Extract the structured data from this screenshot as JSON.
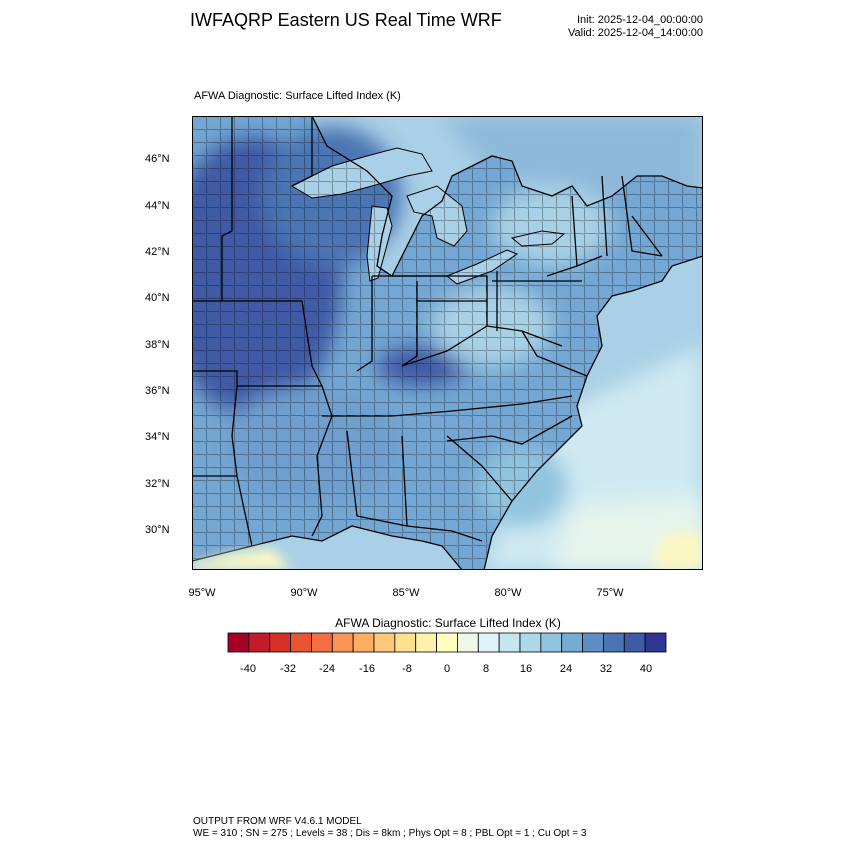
{
  "header": {
    "title": "IWFAQRP Eastern US Real Time WRF",
    "init": "Init: 2025-12-04_00:00:00",
    "valid": "Valid: 2025-12-04_14:00:00"
  },
  "map": {
    "subtitle": "AFWA Diagnostic: Surface Lifted Index   (K)",
    "lat_labels": [
      "46°N",
      "44°N",
      "42°N",
      "40°N",
      "38°N",
      "36°N",
      "34°N",
      "32°N",
      "30°N"
    ],
    "lon_labels": [
      "95°W",
      "90°W",
      "85°W",
      "80°W",
      "75°W"
    ],
    "region": "Eastern United States",
    "colors": {
      "land_dark": "#3b5fae",
      "land_mid": "#6f9fcf",
      "land_light": "#a9cfe4",
      "water": "#a9d0e6",
      "water_light": "#cfe9f2",
      "warm": "#fbf7c2",
      "border": "#000000"
    }
  },
  "colorbar": {
    "title": "AFWA Diagnostic: Surface Lifted Index  (K)",
    "tick_labels": [
      "-40",
      "-32",
      "-24",
      "-16",
      "-8",
      "0",
      "8",
      "16",
      "24",
      "32",
      "40"
    ],
    "colors": [
      "#a50026",
      "#c01c2c",
      "#d73027",
      "#e75535",
      "#f46d43",
      "#f99456",
      "#fdae61",
      "#fec87a",
      "#fee090",
      "#fdf2ac",
      "#ffffbf",
      "#eef7e9",
      "#e0f3f8",
      "#c7e5ef",
      "#abd9e9",
      "#91c4de",
      "#74add1",
      "#5f8ec2",
      "#4c74b3",
      "#3f5aa6",
      "#313695"
    ]
  },
  "footer": {
    "line1": "OUTPUT FROM WRF V4.6.1 MODEL",
    "line2": "WE = 310 ; SN = 275 ; Levels = 38 ; Dis = 8km ; Phys Opt = 8 ; PBL Opt = 1 ; Cu Opt = 3"
  }
}
